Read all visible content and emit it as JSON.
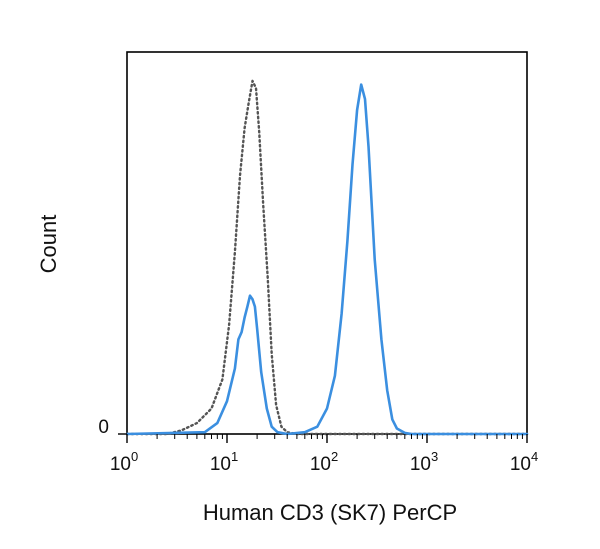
{
  "chart_data": {
    "type": "line",
    "title": "",
    "xlabel": "Human CD3 (SK7) PerCP",
    "ylabel": "Count",
    "xscale": "log",
    "xlim": [
      1,
      10000
    ],
    "ylim": [
      0,
      100
    ],
    "x_ticks": [
      {
        "base": "10",
        "exp": "0",
        "value": 1
      },
      {
        "base": "10",
        "exp": "1",
        "value": 10
      },
      {
        "base": "10",
        "exp": "2",
        "value": 100
      },
      {
        "base": "10",
        "exp": "3",
        "value": 1000
      },
      {
        "base": "10",
        "exp": "4",
        "value": 10000
      }
    ],
    "y_ticks": [
      {
        "label": "0",
        "value": 0
      }
    ],
    "grid": false,
    "legend": "none",
    "series": [
      {
        "style": "dotted",
        "color": "#555555",
        "x": [
          1,
          2.5,
          3.5,
          5,
          7,
          9,
          10.5,
          12,
          13.5,
          15,
          16.5,
          18,
          19.5,
          21,
          23,
          25.5,
          28,
          31,
          35,
          40,
          50,
          100,
          10000
        ],
        "y": [
          0,
          0,
          1,
          3,
          7,
          15,
          30,
          50,
          71,
          84,
          91,
          97,
          95,
          83,
          63,
          43,
          22,
          8,
          2,
          0.5,
          0,
          0,
          0
        ]
      },
      {
        "style": "solid",
        "color": "#3b8fe0",
        "x": [
          1,
          6,
          8,
          10,
          12,
          13,
          14,
          15,
          16,
          17,
          18,
          19,
          20,
          22,
          25,
          28,
          32,
          40,
          60,
          80,
          100,
          120,
          140,
          160,
          180,
          200,
          220,
          240,
          260,
          280,
          300,
          350,
          400,
          450,
          500,
          600,
          700,
          10000
        ],
        "y": [
          0,
          0.5,
          3,
          9,
          18,
          26,
          28,
          32,
          35,
          38,
          37,
          35,
          29,
          17,
          7,
          2,
          0.5,
          0,
          0.5,
          2,
          7,
          16,
          33,
          53,
          74,
          89,
          96,
          92,
          79,
          63,
          48,
          26,
          12,
          4,
          1.5,
          0.3,
          0,
          0
        ]
      }
    ]
  }
}
